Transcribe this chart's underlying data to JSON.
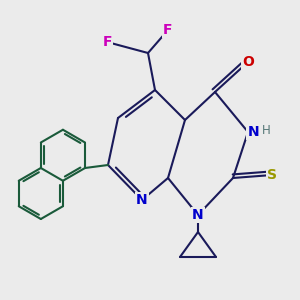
{
  "bg_color": "#ebebeb",
  "bond_color": "#1a1a5a",
  "naph_color": "#1a5a3a",
  "bond_width": 1.5,
  "N_color": "#0000cc",
  "O_color": "#cc0000",
  "S_color": "#999900",
  "F_color": "#cc00bb",
  "H_color": "#557777",
  "figsize": [
    3.0,
    3.0
  ],
  "dpi": 100,
  "xlim": [
    0,
    10
  ],
  "ylim": [
    0,
    10
  ]
}
